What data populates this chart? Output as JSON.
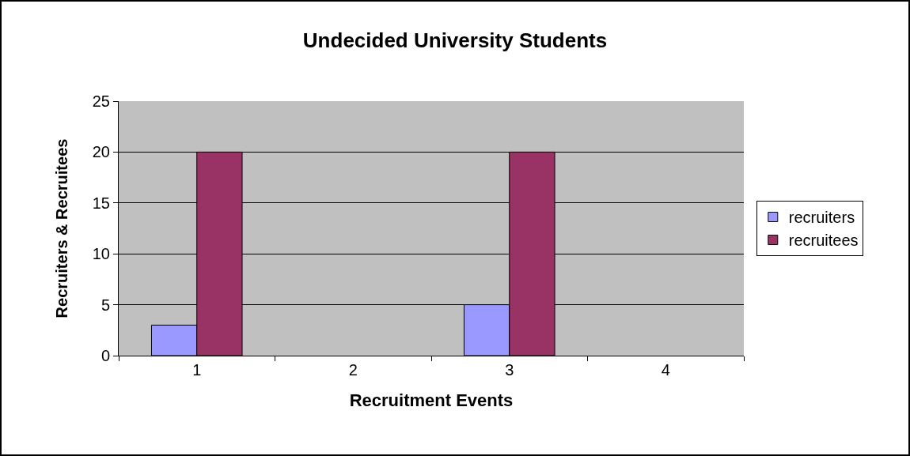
{
  "chart_data": {
    "type": "bar",
    "title": "Undecided University Students",
    "xlabel": "Recruitment Events",
    "ylabel": "Recruiters & Recruitees",
    "categories": [
      "1",
      "2",
      "3",
      "4"
    ],
    "series": [
      {
        "name": "recruiters",
        "color": "#9999ff",
        "values": [
          3,
          null,
          5,
          null
        ]
      },
      {
        "name": "recruitees",
        "color": "#993366",
        "values": [
          20,
          null,
          20,
          null
        ]
      }
    ],
    "ylim": [
      0,
      25
    ],
    "yticks": [
      0,
      5,
      10,
      15,
      20,
      25
    ],
    "grid": "y",
    "legend": "right"
  }
}
